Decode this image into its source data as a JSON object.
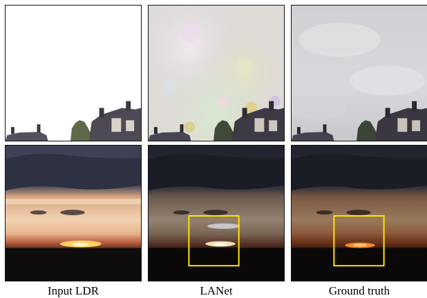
{
  "figure": {
    "columns": [
      {
        "caption": "Input LDR"
      },
      {
        "caption": "LANet"
      },
      {
        "caption": "Ground truth"
      }
    ],
    "rows": [
      {
        "content": "overexposed sky above rooftops and chimneys"
      },
      {
        "content": "sunset over horizon with dark clouds"
      }
    ],
    "highlight_color": "#ffe600"
  }
}
